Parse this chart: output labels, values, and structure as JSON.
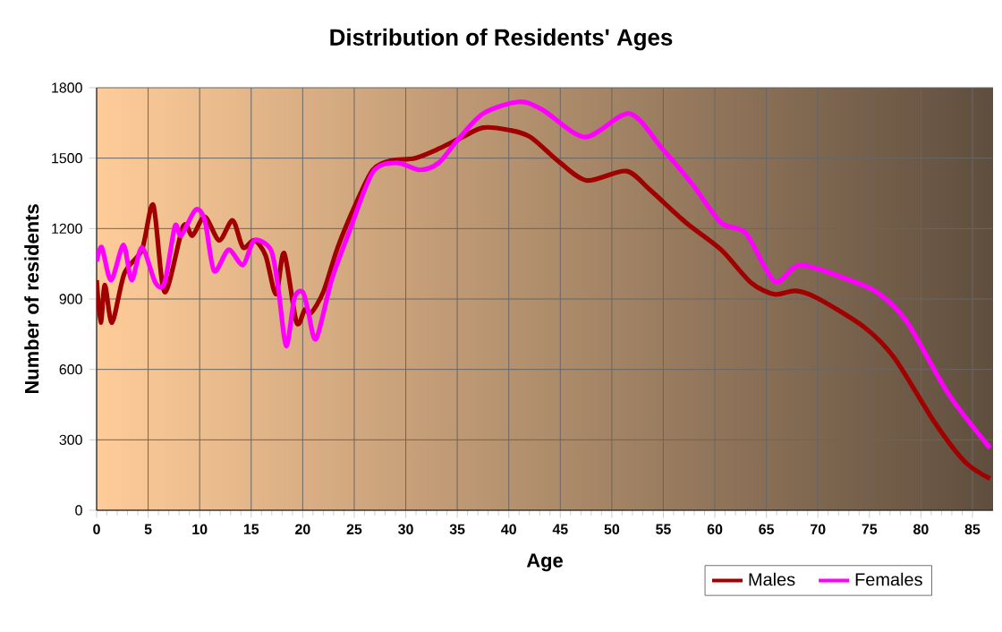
{
  "chart_data": {
    "type": "line",
    "title": "Distribution of Residents' Ages",
    "xlabel": "Age",
    "ylabel": "Number of residents",
    "xlim": [
      0,
      87
    ],
    "xticks": [
      0,
      5,
      10,
      15,
      20,
      25,
      30,
      35,
      40,
      45,
      50,
      55,
      60,
      65,
      70,
      75,
      80,
      85
    ],
    "ylim": [
      0,
      1800
    ],
    "yticks": [
      0,
      300,
      600,
      900,
      1200,
      1500,
      1800
    ],
    "grid": true,
    "legend": "bottom right",
    "marker": "none",
    "line_style": "solid",
    "series": [
      {
        "name": "Males",
        "color": "#a00000",
        "x": [
          0,
          0.4,
          0.8,
          1.5,
          2.7,
          4.4,
          5.5,
          6.6,
          8.4,
          9.3,
          10.5,
          11.9,
          13.2,
          14.2,
          15.3,
          16.4,
          17.4,
          18.2,
          19.4,
          20.2,
          20.8,
          22,
          23.4,
          25.1,
          26.8,
          28.6,
          30.9,
          33.2,
          35.5,
          37.5,
          40,
          42.1,
          45,
          47.6,
          51.4,
          53.7,
          57.2,
          60.6,
          63.5,
          65.8,
          67.8,
          69.9,
          74.5,
          77.4,
          81.4,
          84.3,
          86.7
        ],
        "values": [
          980,
          800,
          960,
          800,
          1010,
          1110,
          1300,
          930,
          1210,
          1170,
          1250,
          1150,
          1235,
          1120,
          1150,
          1085,
          920,
          1095,
          800,
          855,
          840,
          930,
          1120,
          1300,
          1450,
          1490,
          1500,
          1540,
          1590,
          1630,
          1620,
          1590,
          1480,
          1405,
          1445,
          1365,
          1225,
          1110,
          970,
          920,
          935,
          905,
          780,
          650,
          370,
          205,
          135
        ]
      },
      {
        "name": "Females",
        "color": "#ff00ff",
        "x": [
          0,
          0.5,
          1.4,
          2.6,
          3.4,
          4.4,
          5.7,
          6.6,
          7.6,
          8.2,
          9.6,
          10.5,
          11.4,
          12.8,
          14.2,
          15.3,
          16.9,
          17.6,
          18.4,
          19.2,
          20,
          20.5,
          21.3,
          22.8,
          24.5,
          26.8,
          29.1,
          31.4,
          33.2,
          34.9,
          37.5,
          41,
          43.3,
          47.4,
          51.7,
          54.9,
          57.8,
          60.6,
          63,
          65.8,
          68.2,
          72.2,
          75.7,
          78.6,
          82.6,
          86.7
        ],
        "values": [
          1060,
          1120,
          980,
          1130,
          980,
          1120,
          970,
          970,
          1210,
          1170,
          1280,
          1235,
          1020,
          1110,
          1045,
          1150,
          1110,
          955,
          700,
          905,
          930,
          855,
          730,
          980,
          1185,
          1440,
          1480,
          1450,
          1480,
          1570,
          1690,
          1740,
          1705,
          1590,
          1690,
          1540,
          1390,
          1225,
          1180,
          975,
          1045,
          995,
          930,
          805,
          500,
          265
        ]
      }
    ]
  }
}
